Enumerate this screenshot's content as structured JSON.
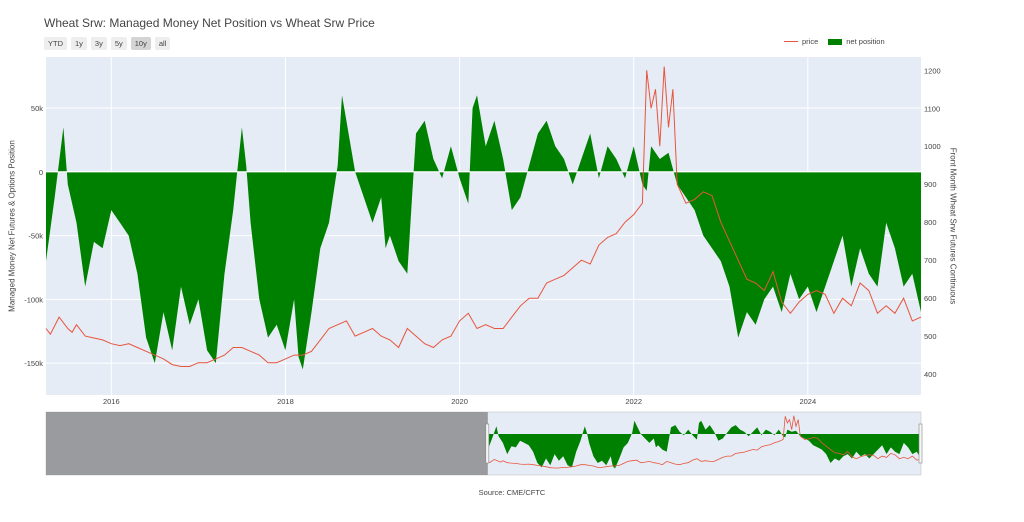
{
  "title": "Wheat Srw: Managed Money Net Position vs Wheat Srw Price",
  "range_buttons": [
    "YTD",
    "1y",
    "3y",
    "5y",
    "10y",
    "all"
  ],
  "active_range": "10y",
  "source": "Source: CME/CFTC",
  "legend": {
    "price": "price",
    "net": "net position"
  },
  "colors": {
    "price": "#e8553d",
    "net": "#008000",
    "plot_bg": "#e5ecf6",
    "selector_shade": "#808080"
  },
  "chart_data": {
    "type": "area",
    "title": "Wheat Srw: Managed Money Net Position vs Wheat Srw Price",
    "ylabel": "Managed Money Net Futures & Options Position",
    "y2label": "Front Month Wheat Srw Futures Continuous",
    "x_range": [
      2015.25,
      2025.3
    ],
    "ylim": [
      -175000,
      90000
    ],
    "y2lim": [
      345,
      1235
    ],
    "y_ticks": [
      -150000,
      -100000,
      -50000,
      0,
      50000
    ],
    "y_tick_labels": [
      "-150k",
      "-100k",
      "-50k",
      "0",
      "50k"
    ],
    "y2_ticks": [
      400,
      500,
      600,
      700,
      800,
      900,
      1000,
      1100,
      1200
    ],
    "x_ticks": [
      2016,
      2018,
      2020,
      2022,
      2024
    ],
    "grid": true,
    "legend_position": "top-right",
    "range_selector": {
      "start": 2015.25,
      "end": 2025.3,
      "full_start": 2005.0,
      "full_end": 2025.3
    },
    "series": [
      {
        "name": "net position",
        "axis": "left",
        "x": [
          2015.25,
          2015.35,
          2015.45,
          2015.5,
          2015.6,
          2015.7,
          2015.8,
          2015.9,
          2016.0,
          2016.1,
          2016.2,
          2016.3,
          2016.4,
          2016.5,
          2016.6,
          2016.7,
          2016.8,
          2016.9,
          2017.0,
          2017.1,
          2017.2,
          2017.3,
          2017.4,
          2017.5,
          2017.55,
          2017.6,
          2017.7,
          2017.8,
          2017.9,
          2018.0,
          2018.1,
          2018.15,
          2018.2,
          2018.3,
          2018.4,
          2018.5,
          2018.6,
          2018.65,
          2018.7,
          2018.8,
          2018.9,
          2019.0,
          2019.1,
          2019.15,
          2019.2,
          2019.3,
          2019.4,
          2019.5,
          2019.6,
          2019.7,
          2019.8,
          2019.9,
          2020.0,
          2020.1,
          2020.15,
          2020.2,
          2020.3,
          2020.4,
          2020.5,
          2020.6,
          2020.7,
          2020.8,
          2020.9,
          2021.0,
          2021.1,
          2021.2,
          2021.3,
          2021.4,
          2021.5,
          2021.6,
          2021.7,
          2021.8,
          2021.9,
          2022.0,
          2022.1,
          2022.15,
          2022.2,
          2022.3,
          2022.4,
          2022.5,
          2022.6,
          2022.7,
          2022.8,
          2022.9,
          2023.0,
          2023.1,
          2023.2,
          2023.3,
          2023.4,
          2023.5,
          2023.6,
          2023.7,
          2023.8,
          2023.9,
          2024.0,
          2024.1,
          2024.2,
          2024.3,
          2024.4,
          2024.5,
          2024.6,
          2024.7,
          2024.8,
          2024.9,
          2025.0,
          2025.1,
          2025.2,
          2025.3
        ],
        "values": [
          -70000,
          -20000,
          35000,
          -10000,
          -40000,
          -90000,
          -55000,
          -60000,
          -30000,
          -40000,
          -50000,
          -80000,
          -130000,
          -150000,
          -110000,
          -140000,
          -90000,
          -120000,
          -100000,
          -140000,
          -150000,
          -80000,
          -30000,
          35000,
          5000,
          -40000,
          -100000,
          -130000,
          -120000,
          -140000,
          -100000,
          -145000,
          -155000,
          -110000,
          -60000,
          -40000,
          5000,
          60000,
          40000,
          0,
          -20000,
          -40000,
          -20000,
          -60000,
          -50000,
          -70000,
          -80000,
          30000,
          40000,
          10000,
          -5000,
          20000,
          -5000,
          -25000,
          50000,
          60000,
          20000,
          40000,
          10000,
          -30000,
          -20000,
          5000,
          30000,
          40000,
          20000,
          10000,
          -10000,
          10000,
          30000,
          -5000,
          20000,
          10000,
          -5000,
          20000,
          -10000,
          -15000,
          20000,
          10000,
          15000,
          -10000,
          -20000,
          -30000,
          -50000,
          -60000,
          -70000,
          -90000,
          -130000,
          -110000,
          -120000,
          -100000,
          -90000,
          -110000,
          -80000,
          -100000,
          -90000,
          -110000,
          -90000,
          -70000,
          -50000,
          -90000,
          -60000,
          -80000,
          -90000,
          -40000,
          -60000,
          -90000,
          -80000,
          -110000
        ]
      },
      {
        "name": "price",
        "axis": "right",
        "x": [
          2015.25,
          2015.3,
          2015.4,
          2015.5,
          2015.55,
          2015.6,
          2015.7,
          2015.8,
          2015.9,
          2016.0,
          2016.1,
          2016.2,
          2016.3,
          2016.4,
          2016.5,
          2016.6,
          2016.7,
          2016.8,
          2016.9,
          2017.0,
          2017.1,
          2017.2,
          2017.3,
          2017.4,
          2017.5,
          2017.6,
          2017.7,
          2017.8,
          2017.9,
          2018.0,
          2018.1,
          2018.2,
          2018.3,
          2018.4,
          2018.5,
          2018.6,
          2018.7,
          2018.8,
          2018.9,
          2019.0,
          2019.1,
          2019.2,
          2019.3,
          2019.4,
          2019.5,
          2019.6,
          2019.7,
          2019.8,
          2019.9,
          2020.0,
          2020.1,
          2020.2,
          2020.3,
          2020.4,
          2020.5,
          2020.6,
          2020.7,
          2020.8,
          2020.9,
          2021.0,
          2021.1,
          2021.2,
          2021.3,
          2021.4,
          2021.5,
          2021.6,
          2021.7,
          2021.8,
          2021.9,
          2022.0,
          2022.1,
          2022.15,
          2022.2,
          2022.25,
          2022.3,
          2022.35,
          2022.4,
          2022.45,
          2022.5,
          2022.6,
          2022.7,
          2022.8,
          2022.9,
          2023.0,
          2023.1,
          2023.2,
          2023.3,
          2023.4,
          2023.5,
          2023.6,
          2023.7,
          2023.8,
          2023.9,
          2024.0,
          2024.1,
          2024.2,
          2024.3,
          2024.4,
          2024.5,
          2024.6,
          2024.7,
          2024.8,
          2024.9,
          2025.0,
          2025.1,
          2025.2,
          2025.3
        ],
        "values": [
          520,
          505,
          550,
          520,
          510,
          530,
          500,
          495,
          490,
          480,
          475,
          480,
          470,
          460,
          450,
          440,
          425,
          420,
          420,
          430,
          430,
          440,
          450,
          470,
          470,
          460,
          450,
          430,
          430,
          440,
          450,
          450,
          460,
          490,
          520,
          530,
          540,
          500,
          510,
          520,
          500,
          490,
          470,
          520,
          500,
          480,
          470,
          490,
          500,
          540,
          560,
          520,
          530,
          520,
          520,
          550,
          580,
          600,
          600,
          640,
          650,
          660,
          680,
          700,
          690,
          740,
          760,
          770,
          800,
          820,
          850,
          1200,
          1100,
          1150,
          1000,
          1210,
          1050,
          1150,
          900,
          850,
          860,
          880,
          870,
          800,
          750,
          700,
          650,
          640,
          620,
          670,
          590,
          560,
          590,
          610,
          620,
          610,
          560,
          600,
          580,
          640,
          620,
          560,
          580,
          560,
          600,
          540,
          550
        ]
      }
    ]
  }
}
